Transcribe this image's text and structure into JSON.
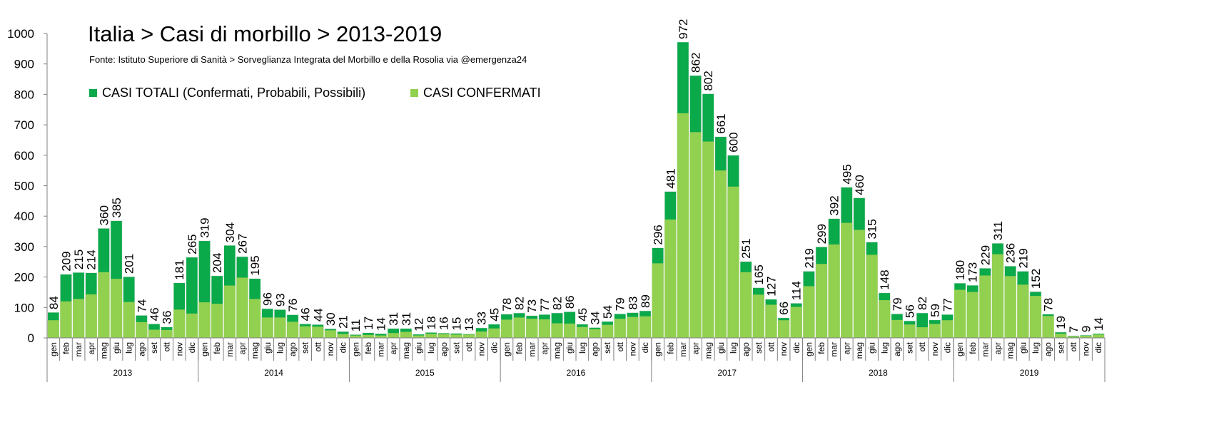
{
  "title": "Italia > Casi di morbillo > 2013-2019",
  "subtitle": "Fonte: Istituto Superiore di Sanità > Sorveglianza Integrata del Morbillo e della Rosolia via @emergenza24",
  "colors": {
    "total": "#0aa94a",
    "confirmed": "#92d050",
    "axis": "#808080"
  },
  "chart_data": {
    "type": "bar",
    "stacked_overlay": true,
    "ylim": [
      0,
      1000
    ],
    "yticks": [
      "0",
      "100",
      "200",
      "300",
      "400",
      "500",
      "600",
      "700",
      "800",
      "900",
      "1000"
    ],
    "months": [
      "gen",
      "feb",
      "mar",
      "apr",
      "mag",
      "giu",
      "lug",
      "ago",
      "set",
      "ott",
      "nov",
      "dic"
    ],
    "years": [
      "2013",
      "2014",
      "2015",
      "2016",
      "2017",
      "2018",
      "2019"
    ],
    "legend": {
      "position": "top-left"
    },
    "series": [
      {
        "name": "CASI TOTALI (Confermati, Probabili, Possibili)",
        "values": [
          84,
          209,
          215,
          214,
          360,
          385,
          201,
          74,
          46,
          36,
          181,
          265,
          319,
          204,
          304,
          267,
          195,
          96,
          93,
          76,
          46,
          44,
          30,
          21,
          11,
          17,
          14,
          31,
          31,
          12,
          18,
          16,
          15,
          13,
          33,
          45,
          78,
          82,
          73,
          77,
          82,
          86,
          45,
          34,
          54,
          79,
          83,
          89,
          296,
          481,
          972,
          862,
          802,
          661,
          600,
          251,
          165,
          127,
          66,
          114,
          219,
          299,
          392,
          495,
          460,
          315,
          148,
          79,
          56,
          82,
          59,
          77,
          180,
          173,
          229,
          311,
          236,
          219,
          152,
          78,
          19,
          7,
          9,
          14
        ]
      },
      {
        "name": "CASI CONFERMATI",
        "values": [
          58,
          120,
          128,
          143,
          216,
          194,
          118,
          52,
          27,
          26,
          93,
          80,
          117,
          112,
          172,
          198,
          128,
          67,
          67,
          53,
          38,
          37,
          25,
          13,
          8,
          10,
          8,
          16,
          20,
          8,
          14,
          13,
          11,
          11,
          21,
          31,
          60,
          67,
          63,
          61,
          48,
          47,
          36,
          29,
          43,
          63,
          69,
          71,
          245,
          389,
          738,
          676,
          645,
          550,
          497,
          216,
          142,
          109,
          58,
          102,
          170,
          243,
          307,
          378,
          355,
          273,
          124,
          59,
          44,
          35,
          46,
          58,
          158,
          151,
          205,
          275,
          203,
          175,
          138,
          72,
          14,
          5,
          7,
          11
        ]
      }
    ]
  }
}
